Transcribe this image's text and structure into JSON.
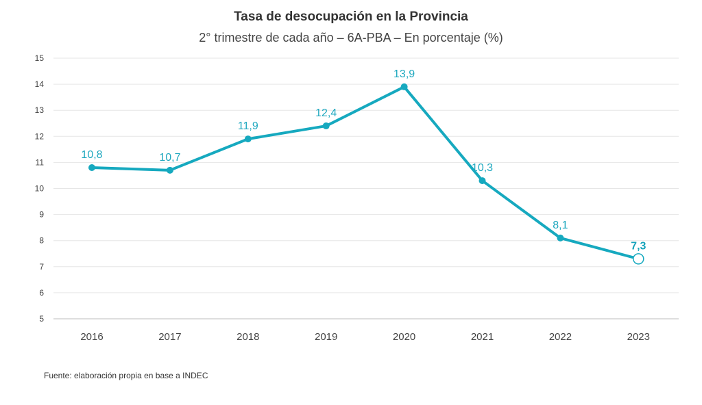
{
  "chart_data": {
    "type": "line",
    "title": "Tasa de desocupación en la Provincia",
    "subtitle": "2° trimestre de cada año – 6A-PBA – En porcentaje (%)",
    "categories": [
      "2016",
      "2017",
      "2018",
      "2019",
      "2020",
      "2021",
      "2022",
      "2023"
    ],
    "values": [
      10.8,
      10.7,
      11.9,
      12.4,
      13.9,
      10.3,
      8.1,
      7.3
    ],
    "data_labels": [
      "10,8",
      "10,7",
      "11,9",
      "12,4",
      "13,9",
      "10,3",
      "8,1",
      "7,3"
    ],
    "y_ticks": [
      "5",
      "6",
      "7",
      "8",
      "9",
      "10",
      "11",
      "12",
      "13",
      "14",
      "15"
    ],
    "ylim": [
      5,
      15
    ],
    "xlabel": "",
    "ylabel": "",
    "grid": true,
    "legend": "none",
    "highlight_last": true,
    "source": "Fuente: elaboración propia en base a INDEC"
  },
  "colors": {
    "line": "#16a9bf",
    "grid": "#e6e6e6",
    "axis": "#bdbdbd"
  }
}
